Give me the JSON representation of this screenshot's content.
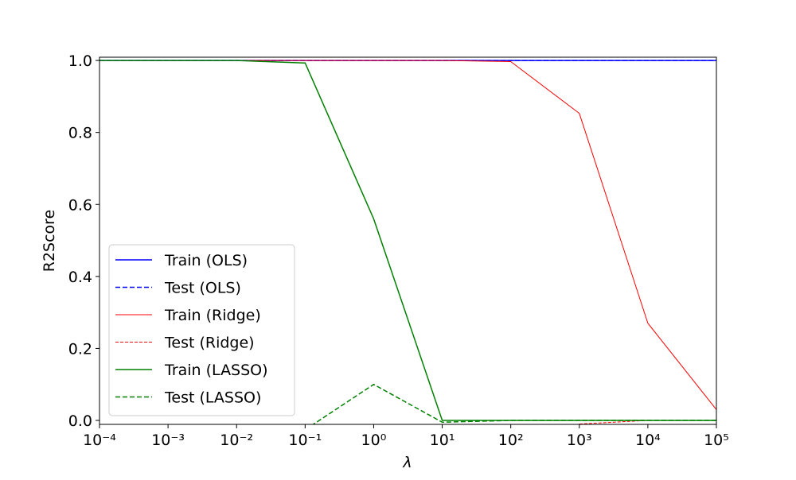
{
  "chart_data": {
    "type": "line",
    "x_label": "λ",
    "y_label": "R2Score",
    "xscale": "log",
    "x": [
      0.0001,
      0.001,
      0.01,
      0.1,
      1,
      10,
      100,
      1000,
      10000,
      100000
    ],
    "xlim": [
      0.0001,
      100000
    ],
    "xticks": [
      {
        "value": 0.0001,
        "label": "10⁻⁴"
      },
      {
        "value": 0.001,
        "label": "10⁻³"
      },
      {
        "value": 0.01,
        "label": "10⁻²"
      },
      {
        "value": 0.1,
        "label": "10⁻¹"
      },
      {
        "value": 1,
        "label": "10⁰"
      },
      {
        "value": 10,
        "label": "10¹"
      },
      {
        "value": 100,
        "label": "10²"
      },
      {
        "value": 1000,
        "label": "10³"
      },
      {
        "value": 10000,
        "label": "10⁴"
      },
      {
        "value": 100000,
        "label": "10⁵"
      }
    ],
    "ylim": [
      -0.011,
      1.009
    ],
    "yticks": [
      {
        "value": 0,
        "label": "0.0"
      },
      0.2,
      0.4,
      0.6,
      0.8,
      {
        "value": 1,
        "label": "1.0"
      }
    ],
    "legend": "lower left",
    "series": [
      {
        "name": "Train (OLS)",
        "color": "#0000ff",
        "linestyle": "solid",
        "linewidth": 1.5,
        "values": [
          1,
          1,
          1,
          1,
          1,
          1,
          1,
          1,
          1,
          1
        ]
      },
      {
        "name": "Test (OLS)",
        "color": "#0000ff",
        "linestyle": "dashed",
        "linewidth": 1.5,
        "values": [
          1,
          1,
          1,
          1,
          1,
          1,
          1,
          1,
          1,
          1
        ]
      },
      {
        "name": "Train (Ridge)",
        "color": "#ff0000",
        "linestyle": "solid",
        "linewidth": 1,
        "values": [
          1,
          1,
          1,
          1,
          1,
          1,
          0.997,
          0.853,
          0.27,
          0.03
        ]
      },
      {
        "name": "Test (Ridge)",
        "color": "#ff0000",
        "linestyle": "dashed",
        "linewidth": 1,
        "values": [
          null,
          null,
          null,
          null,
          null,
          null,
          null,
          -0.01,
          0.0,
          0.0
        ]
      },
      {
        "name": "Train (LASSO)",
        "color": "#008000",
        "linestyle": "solid",
        "linewidth": 1.5,
        "values": [
          1,
          1,
          1,
          0.993,
          0.56,
          0.0,
          0.0,
          0.0,
          0.0,
          0.0
        ]
      },
      {
        "name": "Test (LASSO)",
        "color": "#008000",
        "linestyle": "dashed",
        "linewidth": 1.5,
        "values": [
          null,
          null,
          null,
          -0.026,
          0.1,
          -0.005,
          0.0,
          0.0,
          0.0,
          0.0
        ]
      }
    ]
  }
}
